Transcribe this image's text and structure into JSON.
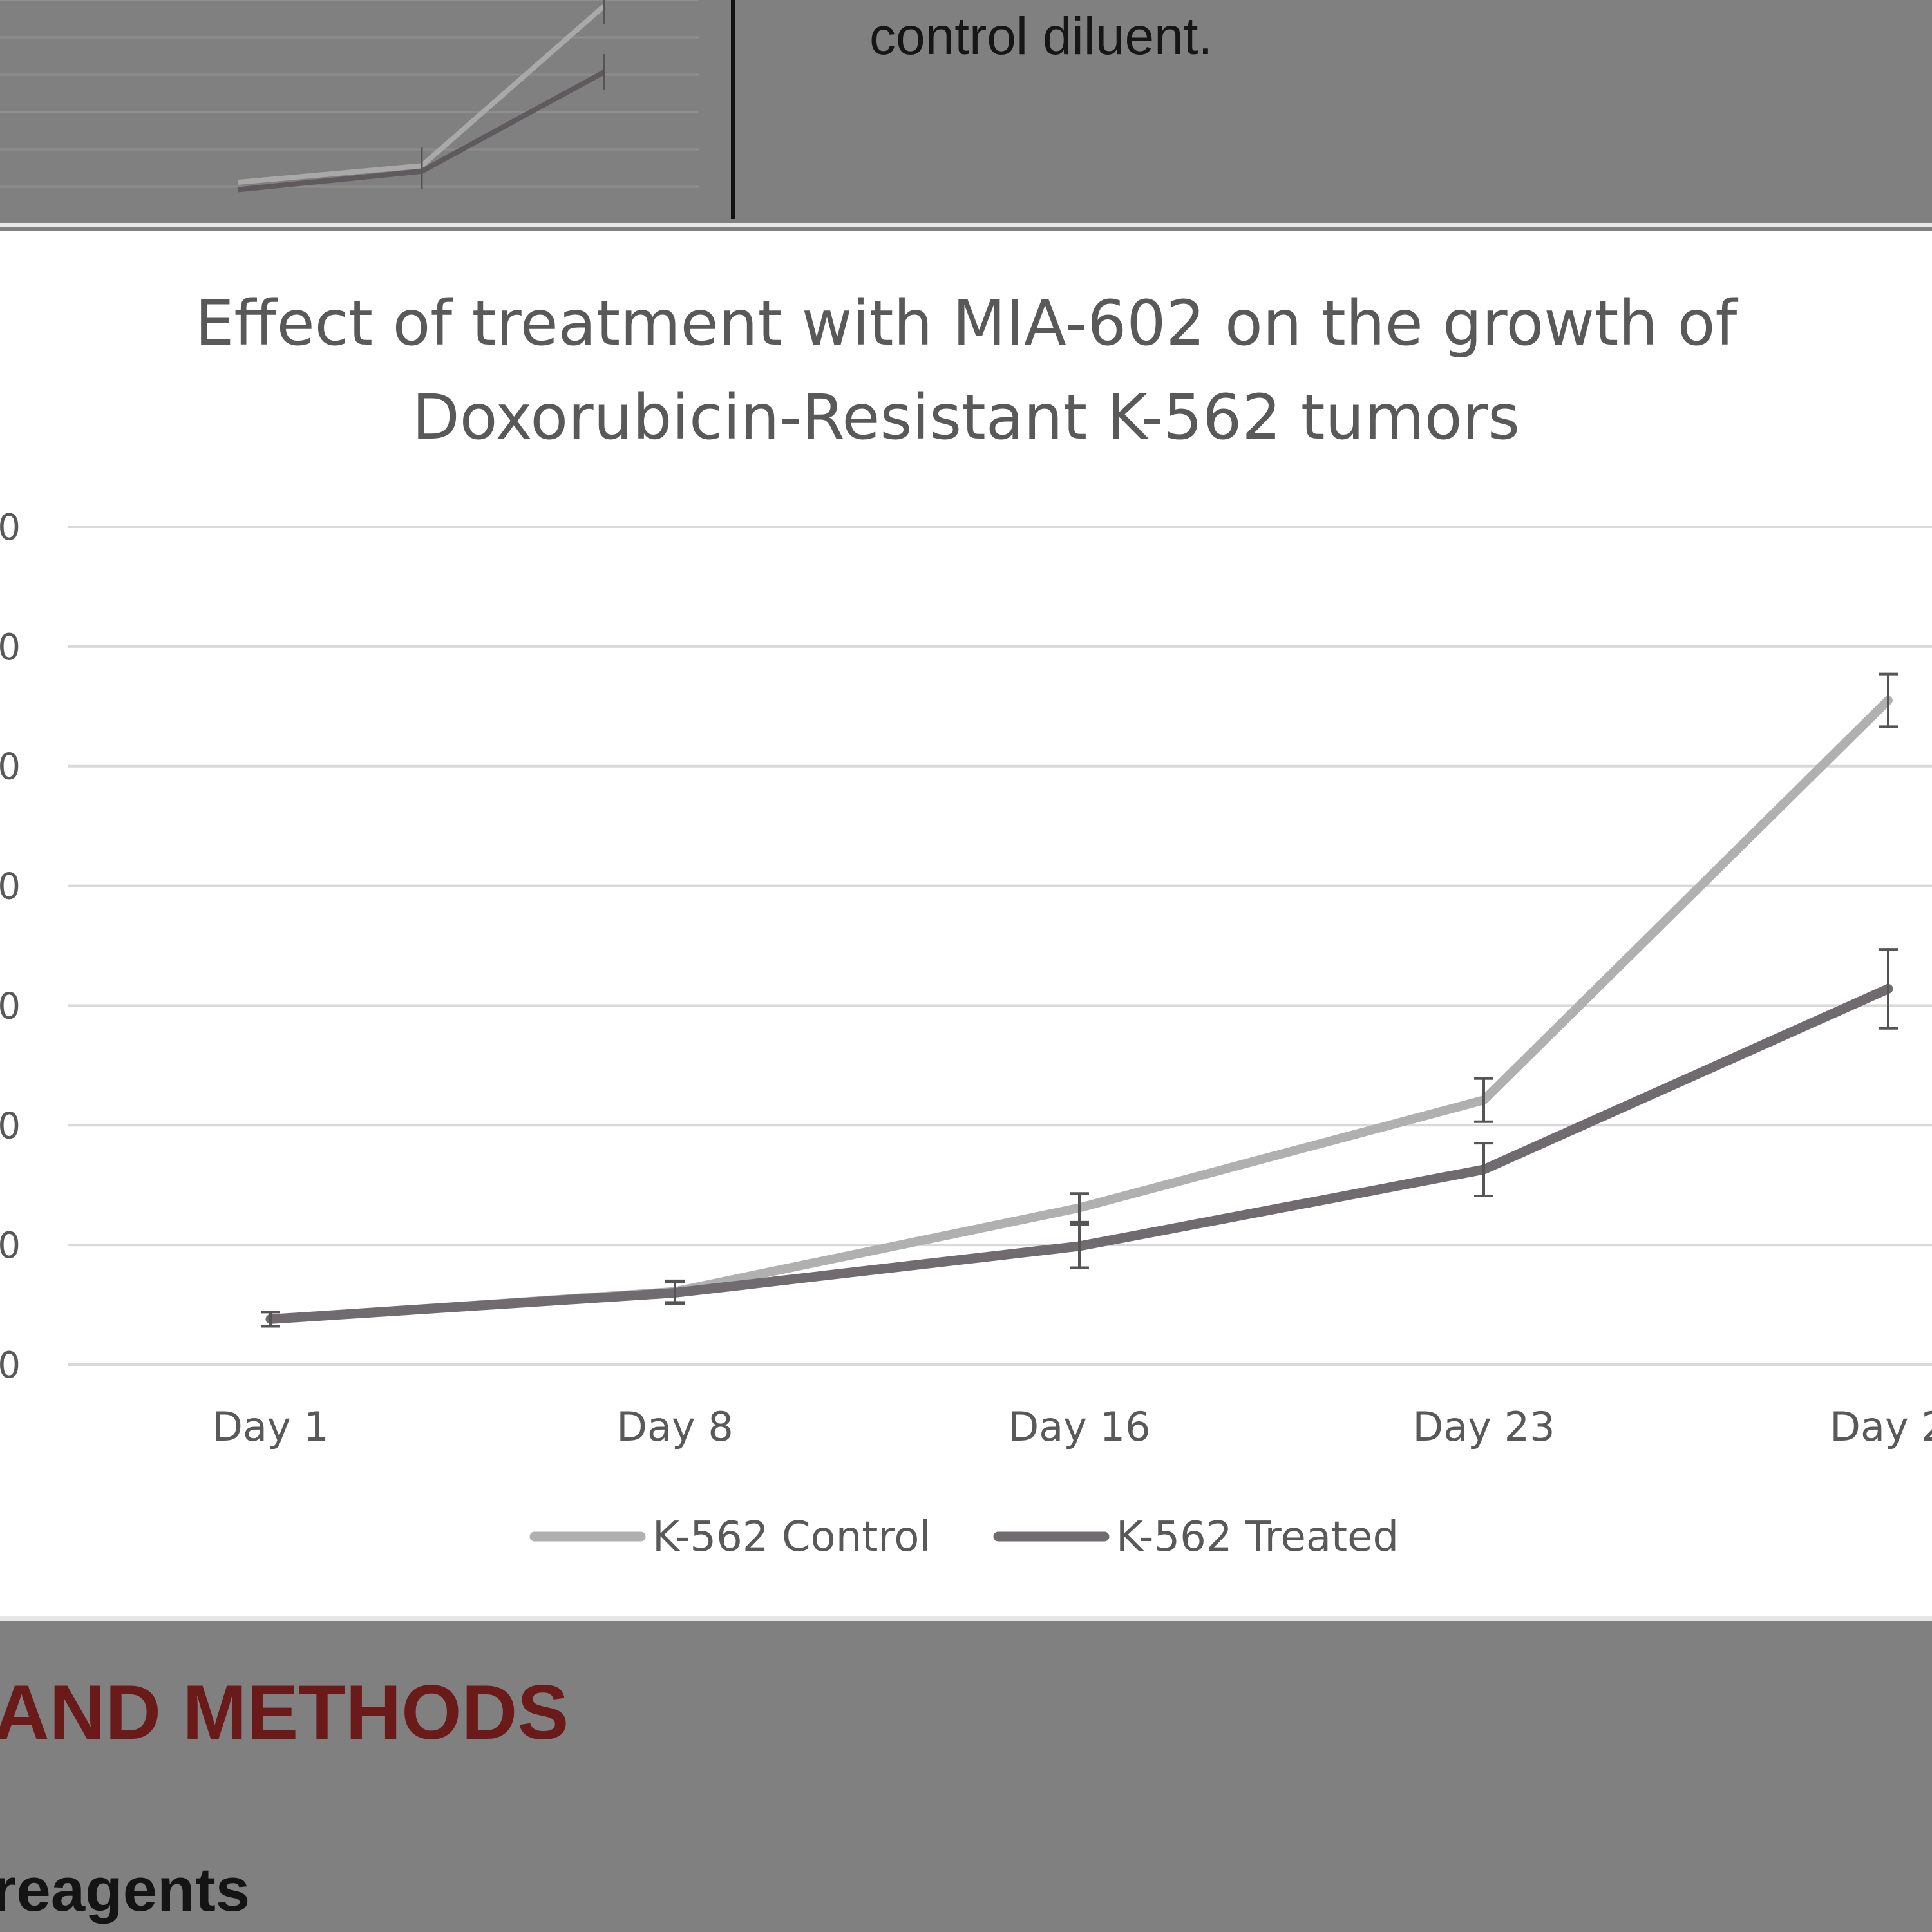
{
  "top": {
    "caption_fragment": "control diluent."
  },
  "chart_data": {
    "type": "line",
    "title_lines": [
      "Effect of treatment with MIA-602 on the growth of",
      "Doxorubicin-Resistant K-562 tumors"
    ],
    "categories": [
      "Day 1",
      "Day 8",
      "Day 16",
      "Day 23",
      "Day 2"
    ],
    "y_ticks": [
      "0",
      "0",
      "0",
      "0",
      "0",
      "0",
      "0",
      "0"
    ],
    "ylim": [
      0,
      700
    ],
    "grid": true,
    "legend_position": "bottom",
    "series": [
      {
        "name": "K-562 Control",
        "color": "#b0b0b0",
        "values": [
          38,
          61,
          131,
          221,
          555
        ],
        "errors": [
          6,
          9,
          12,
          18,
          22
        ]
      },
      {
        "name": "K-562 Treated",
        "color": "#6f6b6f",
        "values": [
          38,
          60,
          99,
          163,
          314
        ],
        "errors": [
          6,
          9,
          18,
          22,
          33
        ]
      }
    ]
  },
  "mini_chart": {
    "series": [
      {
        "color": "#a9a9a9",
        "values": [
          20,
          29,
          116
        ]
      },
      {
        "color": "#5e5a5e",
        "values": [
          16,
          26,
          80
        ]
      }
    ]
  },
  "section": {
    "heading": "AND METHODS",
    "subheading": "reagents"
  }
}
